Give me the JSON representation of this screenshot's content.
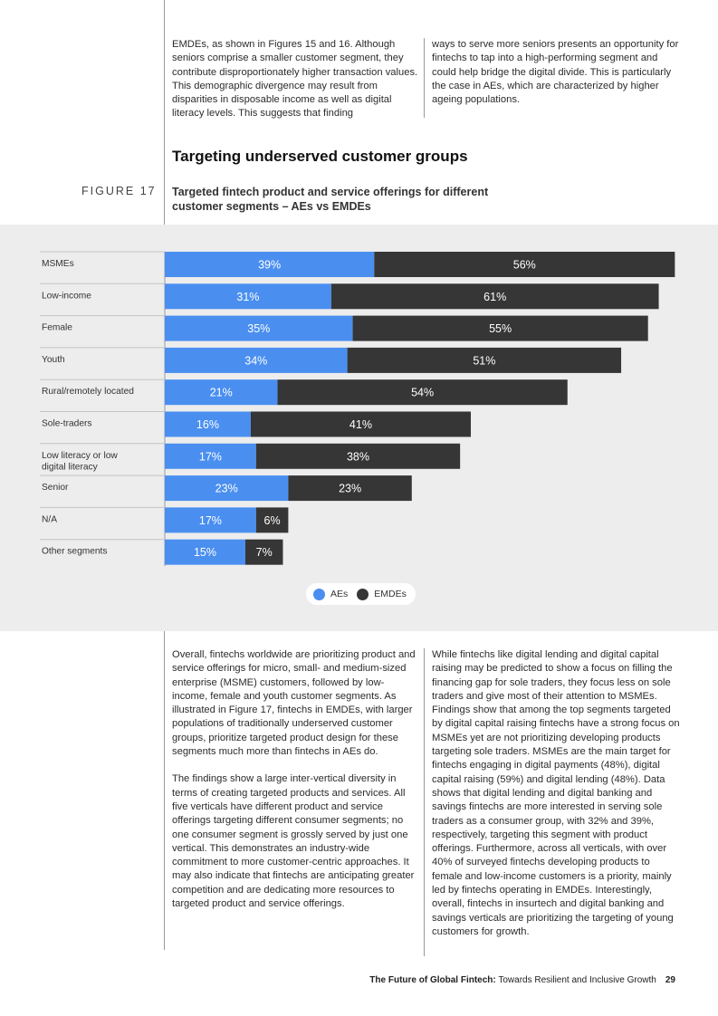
{
  "top_text": {
    "left": "EMDEs, as shown in Figures 15 and 16. Although seniors comprise a smaller customer segment, they contribute disproportionately higher transaction values. This demographic divergence may result from disparities in disposable income as well as digital literacy levels. This suggests that finding",
    "right": "ways to serve more seniors presents an opportunity for fintechs to tap into a high-performing segment and could help bridge the digital divide. This is particularly the case in AEs, which are characterized by higher ageing populations."
  },
  "section_heading": "Targeting underserved customer groups",
  "figure": {
    "label": "FIGURE 17",
    "title": "Targeted fintech product and service offerings for different customer segments – AEs vs EMDEs"
  },
  "colors": {
    "aes": "#4a8ff0",
    "emdes": "#363636"
  },
  "chart_data": {
    "type": "bar",
    "orientation": "horizontal",
    "stacked": true,
    "categories": [
      "MSMEs",
      "Low-income",
      "Female",
      "Youth",
      "Rural/remotely located",
      "Sole-traders",
      "Low literacy or low digital literacy",
      "Senior",
      "N/A",
      "Other segments"
    ],
    "series": [
      {
        "name": "AEs",
        "values": [
          39,
          31,
          35,
          34,
          21,
          16,
          17,
          23,
          17,
          15
        ]
      },
      {
        "name": "EMDEs",
        "values": [
          56,
          61,
          55,
          51,
          54,
          41,
          38,
          23,
          6,
          7
        ]
      }
    ],
    "value_suffix": "%",
    "legend": [
      "AEs",
      "EMDEs"
    ],
    "legend_position": "bottom-center"
  },
  "body_text": {
    "left": [
      "Overall, fintechs worldwide are prioritizing product and service offerings for micro, small- and medium-sized enterprise (MSME) customers, followed by low-income, female and youth customer segments. As illustrated in Figure 17, fintechs in EMDEs, with larger populations of traditionally underserved customer groups, prioritize targeted product design for these segments much more than fintechs in AEs do.",
      "The findings show a large inter-vertical diversity in terms of creating targeted products and services. All five verticals have different product and service offerings targeting different consumer segments; no one consumer segment is grossly served by just one vertical. This demonstrates an industry-wide commitment to more customer-centric approaches. It may also indicate that fintechs are anticipating greater competition and are dedicating more resources to targeted product and service offerings."
    ],
    "right": "While fintechs like digital lending and digital capital raising may be predicted to show a focus on filling the financing gap for sole traders, they focus less on sole traders and give most of their attention to MSMEs. Findings show that among the top segments targeted by digital capital raising fintechs have a strong focus on MSMEs yet are not prioritizing developing products targeting sole traders. MSMEs are the main target for fintechs engaging in digital payments (48%), digital capital raising (59%) and digital lending (48%). Data shows that digital lending and digital banking and savings fintechs are more interested in serving sole traders as a consumer group, with 32% and 39%, respectively, targeting this segment with product offerings. Furthermore, across all verticals, with over 40% of surveyed fintechs developing products to female and low-income customers is a priority, mainly led by fintechs operating in EMDEs. Interestingly, overall, fintechs in insurtech and digital banking and savings verticals are prioritizing the targeting of young customers for growth."
  },
  "footer": {
    "title_bold": "The Future of Global Fintech:",
    "title_rest": " Towards Resilient and Inclusive Growth",
    "page_number": "29"
  }
}
